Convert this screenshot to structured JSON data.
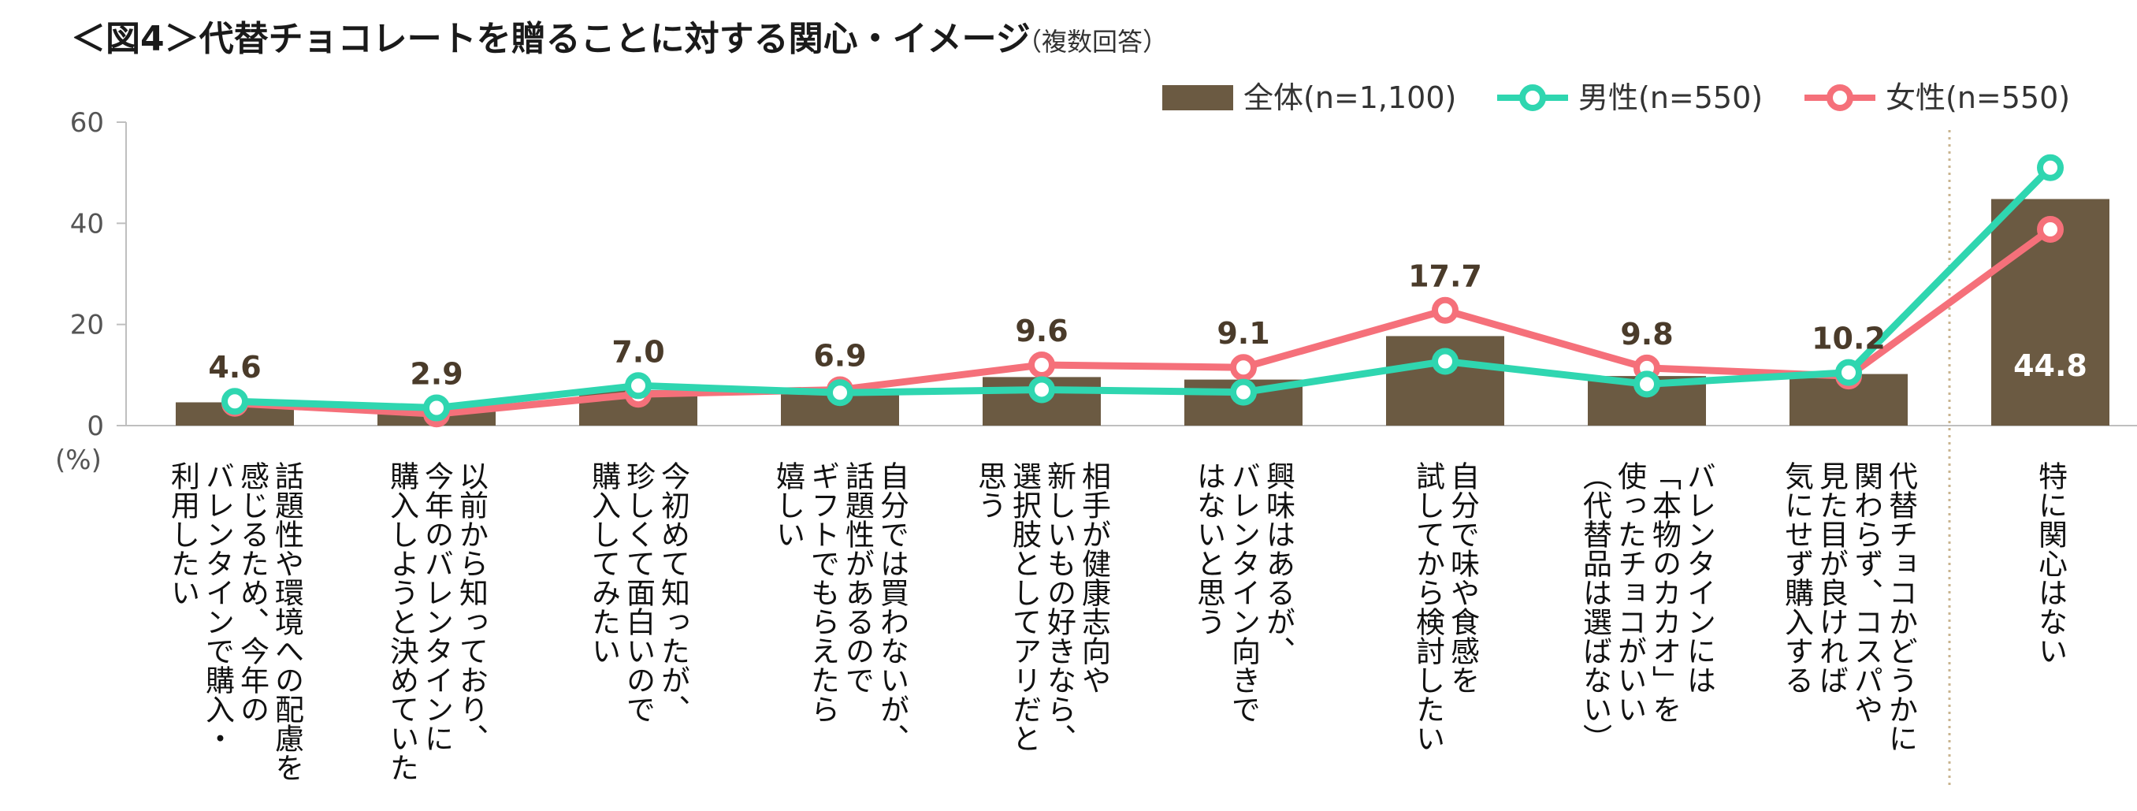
{
  "chart_data": {
    "type": "bar",
    "title": "＜図4＞代替チョコレートを贈ることに対する関心・イメージ",
    "subtitle": "（複数回答）",
    "ylabel": "(%)",
    "ylim": [
      0,
      60
    ],
    "yticks": [
      0,
      20,
      40,
      60
    ],
    "grid": false,
    "legend_position": "top-right",
    "categories": [
      "話題性や環境への配慮を感じるため、今年のバレンタインで購入・利用したい",
      "以前から知っており、今年のバレンタインに購入しようと決めていた",
      "今初めて知ったが、珍しくて面白いので購入してみたい",
      "自分では買わないが、話題性があるのでギフトでもらえたら嬉しい",
      "相手が健康志向や新しいもの好きなら、選択肢としてアリだと思う",
      "興味はあるが、バレンタイン向きではないと思う",
      "自分で味や食感を試してから検討したい",
      "バレンタインには「本物のカカオ」を使ったチョコがいい（代替品は選ばない）",
      "代替チョコかどうかに関わらず、コスパや見た目が良ければ気にせず購入する",
      "特に関心はない"
    ],
    "category_lines": [
      [
        "話題性や環境への配慮を",
        "感じるため、今年の",
        "バレンタインで購入・",
        "利用したい"
      ],
      [
        "以前から知っており、",
        "今年のバレンタインに",
        "購入しようと決めていた"
      ],
      [
        "今初めて知ったが、",
        "珍しくて面白いので",
        "購入してみたい"
      ],
      [
        "自分では買わないが、",
        "話題性があるので",
        "ギフトでもらえたら",
        "嬉しい"
      ],
      [
        "相手が健康志向や",
        "新しいもの好きなら、",
        "選択肢としてアリだと",
        "思う"
      ],
      [
        "興味はあるが、",
        "バレンタイン向きで",
        "はないと思う"
      ],
      [
        "自分で味や食感を",
        "試してから検討したい"
      ],
      [
        "バレンタインには",
        "「本物のカカオ」を",
        "使ったチョコがいい",
        "（代替品は選ばない）"
      ],
      [
        "代替チョコかどうかに",
        "関わらず、コスパや",
        "見た目が良ければ",
        "気にせず購入する"
      ],
      [
        "特に関心はない"
      ]
    ],
    "series": [
      {
        "name": "全体(n=1,100)",
        "type": "bar",
        "color": "#6b5a42",
        "values": [
          4.6,
          2.9,
          7.0,
          6.9,
          9.6,
          9.1,
          17.7,
          9.8,
          10.2,
          44.8
        ],
        "labels": [
          "4.6",
          "2.9",
          "7.0",
          "6.9",
          "9.6",
          "9.1",
          "17.7",
          "9.8",
          "10.2",
          "44.8"
        ]
      },
      {
        "name": "男性(n=550)",
        "type": "line",
        "color": "#2fd6b0",
        "values": [
          4.8,
          3.5,
          7.9,
          6.5,
          7.1,
          6.6,
          12.7,
          8.2,
          10.5,
          51.0
        ]
      },
      {
        "name": "女性(n=550)",
        "type": "line",
        "color": "#f5707a",
        "values": [
          4.4,
          2.3,
          6.2,
          7.1,
          12.0,
          11.5,
          22.8,
          11.4,
          9.8,
          38.8
        ]
      }
    ]
  }
}
